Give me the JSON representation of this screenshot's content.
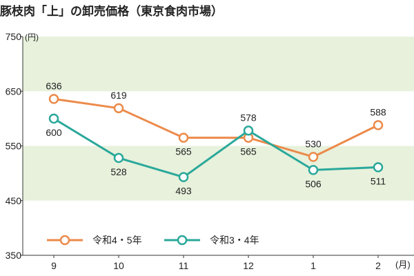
{
  "chart_data": {
    "type": "line",
    "title": "豚枝肉「上」の卸売価格（東京食肉市場）",
    "xlabel": "(月)",
    "ylabel": "(円)",
    "categories": [
      "9",
      "10",
      "11",
      "12",
      "1",
      "2"
    ],
    "ylim": [
      350,
      750
    ],
    "yticks": [
      "350",
      "450",
      "550",
      "650",
      "750"
    ],
    "grid": false,
    "legend_position": "bottom-left",
    "series": [
      {
        "name": "令和4・5年",
        "color": "#ec8a4a",
        "values": [
          636,
          619,
          565,
          565,
          530,
          588
        ],
        "labels": [
          "636",
          "619",
          "565",
          "565",
          "530",
          "588"
        ]
      },
      {
        "name": "令和3・4年",
        "color": "#2aa89a",
        "values": [
          600,
          528,
          493,
          578,
          506,
          511
        ],
        "labels": [
          "600",
          "528",
          "493",
          "578",
          "506",
          "511"
        ]
      }
    ],
    "band_color": "#e7f1dc"
  }
}
